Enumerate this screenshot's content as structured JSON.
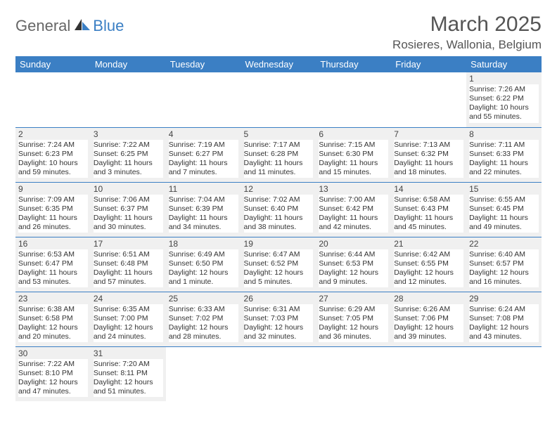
{
  "brand": {
    "general": "General",
    "blue": "Blue"
  },
  "title": "March 2025",
  "location": "Rosieres, Wallonia, Belgium",
  "colors": {
    "header_bg": "#3b7fc4",
    "header_fg": "#ffffff",
    "cell_shade": "#f0f0f0",
    "rule": "#3b7fc4"
  },
  "weekdays": [
    "Sunday",
    "Monday",
    "Tuesday",
    "Wednesday",
    "Thursday",
    "Friday",
    "Saturday"
  ],
  "grid": [
    [
      {
        "blank": true
      },
      {
        "blank": true
      },
      {
        "blank": true
      },
      {
        "blank": true
      },
      {
        "blank": true
      },
      {
        "blank": true
      },
      {
        "n": "1",
        "sunrise": "7:26 AM",
        "sunset": "6:22 PM",
        "daylight": "10 hours and 55 minutes."
      }
    ],
    [
      {
        "n": "2",
        "sunrise": "7:24 AM",
        "sunset": "6:23 PM",
        "daylight": "10 hours and 59 minutes."
      },
      {
        "n": "3",
        "sunrise": "7:22 AM",
        "sunset": "6:25 PM",
        "daylight": "11 hours and 3 minutes."
      },
      {
        "n": "4",
        "sunrise": "7:19 AM",
        "sunset": "6:27 PM",
        "daylight": "11 hours and 7 minutes."
      },
      {
        "n": "5",
        "sunrise": "7:17 AM",
        "sunset": "6:28 PM",
        "daylight": "11 hours and 11 minutes."
      },
      {
        "n": "6",
        "sunrise": "7:15 AM",
        "sunset": "6:30 PM",
        "daylight": "11 hours and 15 minutes."
      },
      {
        "n": "7",
        "sunrise": "7:13 AM",
        "sunset": "6:32 PM",
        "daylight": "11 hours and 18 minutes."
      },
      {
        "n": "8",
        "sunrise": "7:11 AM",
        "sunset": "6:33 PM",
        "daylight": "11 hours and 22 minutes."
      }
    ],
    [
      {
        "n": "9",
        "sunrise": "7:09 AM",
        "sunset": "6:35 PM",
        "daylight": "11 hours and 26 minutes."
      },
      {
        "n": "10",
        "sunrise": "7:06 AM",
        "sunset": "6:37 PM",
        "daylight": "11 hours and 30 minutes."
      },
      {
        "n": "11",
        "sunrise": "7:04 AM",
        "sunset": "6:39 PM",
        "daylight": "11 hours and 34 minutes."
      },
      {
        "n": "12",
        "sunrise": "7:02 AM",
        "sunset": "6:40 PM",
        "daylight": "11 hours and 38 minutes."
      },
      {
        "n": "13",
        "sunrise": "7:00 AM",
        "sunset": "6:42 PM",
        "daylight": "11 hours and 42 minutes."
      },
      {
        "n": "14",
        "sunrise": "6:58 AM",
        "sunset": "6:43 PM",
        "daylight": "11 hours and 45 minutes."
      },
      {
        "n": "15",
        "sunrise": "6:55 AM",
        "sunset": "6:45 PM",
        "daylight": "11 hours and 49 minutes."
      }
    ],
    [
      {
        "n": "16",
        "sunrise": "6:53 AM",
        "sunset": "6:47 PM",
        "daylight": "11 hours and 53 minutes."
      },
      {
        "n": "17",
        "sunrise": "6:51 AM",
        "sunset": "6:48 PM",
        "daylight": "11 hours and 57 minutes."
      },
      {
        "n": "18",
        "sunrise": "6:49 AM",
        "sunset": "6:50 PM",
        "daylight": "12 hours and 1 minute."
      },
      {
        "n": "19",
        "sunrise": "6:47 AM",
        "sunset": "6:52 PM",
        "daylight": "12 hours and 5 minutes."
      },
      {
        "n": "20",
        "sunrise": "6:44 AM",
        "sunset": "6:53 PM",
        "daylight": "12 hours and 9 minutes."
      },
      {
        "n": "21",
        "sunrise": "6:42 AM",
        "sunset": "6:55 PM",
        "daylight": "12 hours and 12 minutes."
      },
      {
        "n": "22",
        "sunrise": "6:40 AM",
        "sunset": "6:57 PM",
        "daylight": "12 hours and 16 minutes."
      }
    ],
    [
      {
        "n": "23",
        "sunrise": "6:38 AM",
        "sunset": "6:58 PM",
        "daylight": "12 hours and 20 minutes."
      },
      {
        "n": "24",
        "sunrise": "6:35 AM",
        "sunset": "7:00 PM",
        "daylight": "12 hours and 24 minutes."
      },
      {
        "n": "25",
        "sunrise": "6:33 AM",
        "sunset": "7:02 PM",
        "daylight": "12 hours and 28 minutes."
      },
      {
        "n": "26",
        "sunrise": "6:31 AM",
        "sunset": "7:03 PM",
        "daylight": "12 hours and 32 minutes."
      },
      {
        "n": "27",
        "sunrise": "6:29 AM",
        "sunset": "7:05 PM",
        "daylight": "12 hours and 36 minutes."
      },
      {
        "n": "28",
        "sunrise": "6:26 AM",
        "sunset": "7:06 PM",
        "daylight": "12 hours and 39 minutes."
      },
      {
        "n": "29",
        "sunrise": "6:24 AM",
        "sunset": "7:08 PM",
        "daylight": "12 hours and 43 minutes."
      }
    ],
    [
      {
        "n": "30",
        "sunrise": "7:22 AM",
        "sunset": "8:10 PM",
        "daylight": "12 hours and 47 minutes."
      },
      {
        "n": "31",
        "sunrise": "7:20 AM",
        "sunset": "8:11 PM",
        "daylight": "12 hours and 51 minutes."
      },
      {
        "blank": true
      },
      {
        "blank": true
      },
      {
        "blank": true
      },
      {
        "blank": true
      },
      {
        "blank": true
      }
    ]
  ],
  "labels": {
    "sunrise": "Sunrise:",
    "sunset": "Sunset:",
    "daylight": "Daylight:"
  }
}
